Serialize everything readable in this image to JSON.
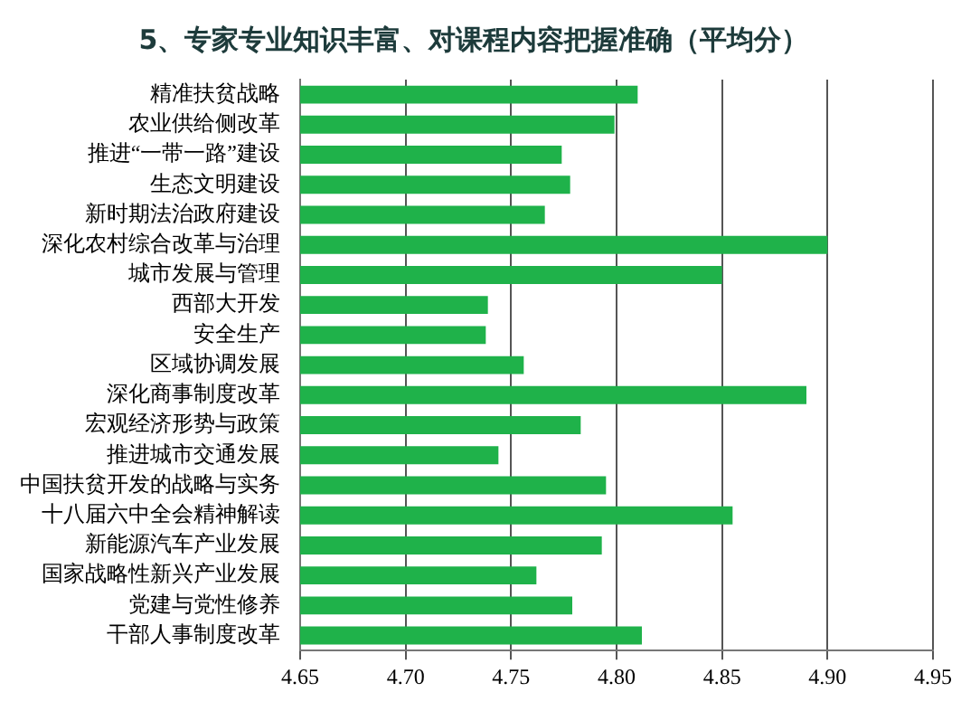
{
  "chart_data": {
    "type": "bar",
    "orientation": "horizontal",
    "title": "5、专家专业知识丰富、对课程内容把握准确（平均分）",
    "categories": [
      "精准扶贫战略",
      "农业供给侧改革",
      "推进“一带一路”建设",
      "生态文明建设",
      "新时期法治政府建设",
      "深化农村综合改革与治理",
      "城市发展与管理",
      "西部大开发",
      "安全生产",
      "区域协调发展",
      "深化商事制度改革",
      "宏观经济形势与政策",
      "推进城市交通发展",
      "中国扶贫开发的战略与实务",
      "十八届六中全会精神解读",
      "新能源汽车产业发展",
      "国家战略性新兴产业发展",
      "党建与党性修养",
      "干部人事制度改革"
    ],
    "values": [
      4.81,
      4.799,
      4.774,
      4.778,
      4.766,
      4.9,
      4.85,
      4.739,
      4.738,
      4.756,
      4.89,
      4.783,
      4.744,
      4.795,
      4.855,
      4.793,
      4.762,
      4.779,
      4.812
    ],
    "color": "#1fb24a",
    "xlim": [
      4.65,
      4.95
    ],
    "xticks": [
      4.65,
      {
        "value": 4.7,
        "label": "4.70"
      },
      4.75,
      {
        "value": 4.8,
        "label": "4.80"
      },
      4.85,
      {
        "value": 4.9,
        "label": "4.90"
      },
      4.95
    ],
    "grid": "x"
  }
}
